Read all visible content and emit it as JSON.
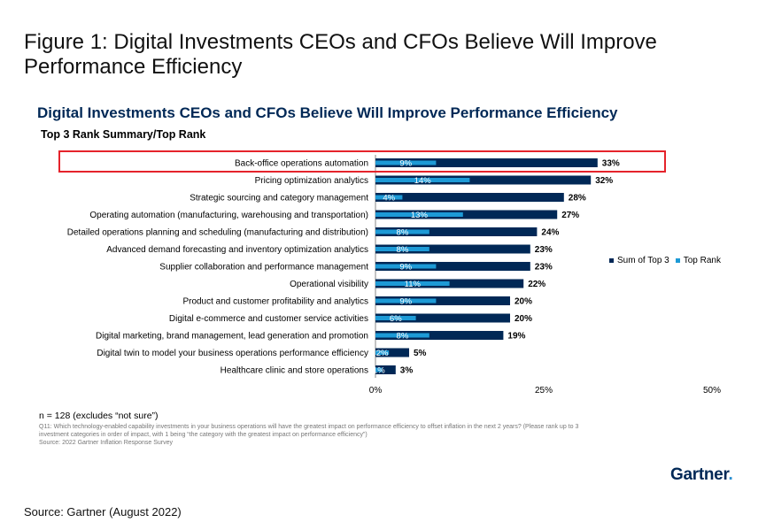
{
  "figure_title": "Figure 1: Digital Investments CEOs and CFOs Believe Will Improve Performance Efficiency",
  "source_text": "Source: Gartner (August 2022)",
  "logo_text": "Gartner",
  "logo_dot": ".",
  "notes": {
    "n": "n = 128 (excludes “not sure”)",
    "q_line1": "Q11: Which technology-enabled capability investments in your business operations will have the greatest impact on performance efficiency to offset inflation in the next 2 years? (Please rank up to 3",
    "q_line2": "investment categories in order of impact, with 1 being “the category with the greatest impact on performance efficiency”)",
    "source": "Source: 2022 Gartner Inflation Response Survey"
  },
  "colors": {
    "sum_top3": "#002856",
    "top_rank": "#1d9ad6",
    "highlight": "#e5232b"
  },
  "chart_data": {
    "type": "bar",
    "orientation": "horizontal",
    "title": "Digital Investments CEOs and CFOs Believe Will Improve Performance Efficiency",
    "subtitle": "Top 3 Rank Summary/Top Rank",
    "categories": [
      "Back-office operations automation",
      "Pricing optimization analytics",
      "Strategic sourcing and category management",
      "Operating automation (manufacturing, warehousing and transportation)",
      "Detailed operations planning and scheduling (manufacturing and distribution)",
      "Advanced demand forecasting and inventory optimization analytics",
      "Supplier collaboration and performance management",
      "Operational visibility",
      "Product and customer profitability and analytics",
      "Digital e-commerce and customer service activities",
      "Digital marketing, brand management, lead generation and promotion",
      "Digital twin to model your business operations performance efficiency",
      "Healthcare clinic and store operations"
    ],
    "series": [
      {
        "name": "Sum of Top 3",
        "values": [
          33,
          32,
          28,
          27,
          24,
          23,
          23,
          22,
          20,
          20,
          19,
          5,
          3
        ],
        "labels": [
          "33%",
          "32%",
          "28%",
          "27%",
          "24%",
          "23%",
          "23%",
          "22%",
          "20%",
          "20%",
          "19%",
          "5%",
          "3%"
        ]
      },
      {
        "name": "Top Rank",
        "values": [
          9,
          14,
          4,
          13,
          8,
          8,
          9,
          11,
          9,
          6,
          8,
          2,
          1
        ],
        "labels": [
          "9%",
          "14%",
          "4%",
          "13%",
          "8%",
          "8%",
          "9%",
          "11%",
          "9%",
          "6%",
          "8%",
          "2%",
          "1%"
        ]
      }
    ],
    "xlim": [
      0,
      50
    ],
    "xticks": [
      "0%",
      "25%",
      "50%"
    ],
    "xtick_values": [
      0,
      25,
      50
    ],
    "legend": "right",
    "highlighted_category": "Back-office operations automation"
  }
}
